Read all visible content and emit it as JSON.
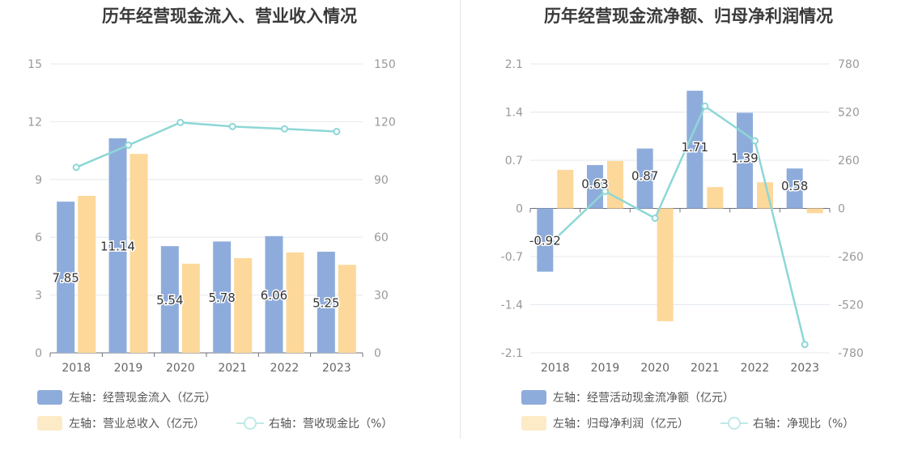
{
  "colors": {
    "bar1": "#8eacdb",
    "bar2": "#fdd89b",
    "line": "#8dd7d6",
    "axis": "#999999",
    "grid": "#e4e8ee"
  },
  "charts": [
    {
      "title": "历年经营现金流入、营业收入情况",
      "legend": {
        "bar1": "左轴：经营现金流入（亿元）",
        "bar2": "左轴：营业总收入（亿元）",
        "line": "右轴：营收现金比（%）"
      }
    },
    {
      "title": "历年经营现金流净额、归母净利润情况",
      "legend": {
        "bar1": "左轴：经营活动现金流净额（亿元）",
        "bar2": "左轴：归母净利润（亿元）",
        "line": "右轴：净现比（%）"
      }
    }
  ],
  "chart_data": [
    {
      "type": "bar",
      "title": "历年经营现金流入、营业收入情况",
      "categories": [
        "2018",
        "2019",
        "2020",
        "2021",
        "2022",
        "2023"
      ],
      "left_axis": {
        "ylim": [
          0,
          15
        ],
        "ticks": [
          "0",
          "3",
          "6",
          "9",
          "12",
          "15"
        ]
      },
      "right_axis": {
        "ylim": [
          0,
          150
        ],
        "ticks": [
          "0",
          "30",
          "60",
          "90",
          "120",
          "150"
        ]
      },
      "series": [
        {
          "name": "左轴：经营现金流入（亿元）",
          "kind": "bar",
          "axis": "left",
          "values": [
            7.85,
            11.14,
            5.54,
            5.78,
            6.06,
            5.25
          ],
          "labels": [
            "7.85",
            "11.14",
            "5.54",
            "5.78",
            "6.06",
            "5.25"
          ]
        },
        {
          "name": "左轴：营业总收入（亿元）",
          "kind": "bar",
          "axis": "left",
          "values": [
            8.15,
            10.33,
            4.63,
            4.92,
            5.21,
            4.57
          ]
        },
        {
          "name": "右轴：营收现金比（%）",
          "kind": "line",
          "axis": "right",
          "values": [
            96.3,
            107.8,
            119.6,
            117.5,
            116.3,
            114.9
          ]
        }
      ],
      "grid": true,
      "legend_position": "bottom-left"
    },
    {
      "type": "bar",
      "title": "历年经营现金流净额、归母净利润情况",
      "categories": [
        "2018",
        "2019",
        "2020",
        "2021",
        "2022",
        "2023"
      ],
      "left_axis": {
        "ylim": [
          -2.1,
          2.1
        ],
        "ticks": [
          "-2.1",
          "-1.4",
          "-0.7",
          "0",
          "0.7",
          "1.4",
          "2.1"
        ]
      },
      "right_axis": {
        "ylim": [
          -780,
          780
        ],
        "ticks": [
          "-780",
          "-520",
          "-260",
          "0",
          "260",
          "520",
          "780"
        ]
      },
      "series": [
        {
          "name": "左轴：经营活动现金流净额（亿元）",
          "kind": "bar",
          "axis": "left",
          "values": [
            -0.92,
            0.63,
            0.87,
            1.71,
            1.39,
            0.58
          ],
          "labels": [
            "-0.92",
            "0.63",
            "0.87",
            "1.71",
            "1.39",
            "0.58"
          ]
        },
        {
          "name": "左轴：归母净利润（亿元）",
          "kind": "bar",
          "axis": "left",
          "values": [
            0.56,
            0.69,
            -1.64,
            0.31,
            0.38,
            -0.07
          ]
        },
        {
          "name": "右轴：净现比（%）",
          "kind": "line",
          "axis": "right",
          "values": [
            -165,
            92,
            -53,
            552,
            365,
            -735
          ]
        }
      ],
      "grid": true,
      "legend_position": "bottom-left"
    }
  ]
}
